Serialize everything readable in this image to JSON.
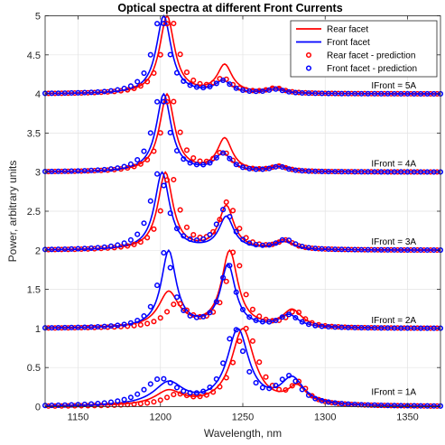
{
  "chart_data": {
    "type": "line",
    "title": "Optical spectra at different Front Currents",
    "xlabel": "Wavelength, nm",
    "ylabel": "Power, arbitrary units",
    "xlim": [
      1130,
      1370
    ],
    "ylim": [
      0,
      5
    ],
    "xticks": [
      "1150",
      "1200",
      "1250",
      "1300",
      "1350"
    ],
    "yticks": [
      "0",
      "0.5",
      "1",
      "1.5",
      "2",
      "2.5",
      "3",
      "3.5",
      "4",
      "4.5",
      "5"
    ],
    "grid": true,
    "legend_position": "top-right",
    "colors": {
      "rear": "#ff0000",
      "front": "#0000ff"
    },
    "legend": [
      {
        "label": "Rear facet",
        "style": "line",
        "color": "#ff0000"
      },
      {
        "label": "Front facet",
        "style": "line",
        "color": "#0000ff"
      },
      {
        "label": "Rear facet - prediction",
        "style": "circle",
        "color": "#ff0000"
      },
      {
        "label": "Front facet - prediction",
        "style": "circle",
        "color": "#0000ff"
      }
    ],
    "annotations": [
      {
        "text": "IFront = 5A",
        "x": 1328,
        "y": 4.07
      },
      {
        "text": "IFront = 4A",
        "x": 1328,
        "y": 3.07
      },
      {
        "text": "IFront = 3A",
        "x": 1328,
        "y": 2.07
      },
      {
        "text": "IFront = 2A",
        "x": 1328,
        "y": 1.07
      },
      {
        "text": "IFront = 1A",
        "x": 1328,
        "y": 0.15
      }
    ],
    "groups": [
      {
        "label": "IFront = 1A",
        "offset": 0,
        "rear": {
          "p1": [
            1205,
            0.18,
            20
          ],
          "p2": [
            1250,
            0.97,
            17
          ],
          "p3": [
            1283,
            0.22,
            14
          ]
        },
        "front": {
          "p1": [
            1205,
            0.28,
            22
          ],
          "p2": [
            1247,
            0.93,
            16
          ],
          "p3": [
            1280,
            0.32,
            17
          ]
        },
        "rear_pred": {
          "p1": [
            1210,
            0.12,
            18
          ],
          "p2": [
            1252,
            0.99,
            18
          ],
          "p3": [
            1284,
            0.25,
            12
          ]
        },
        "front_pred": {
          "p1": [
            1200,
            0.32,
            24
          ],
          "p2": [
            1245,
            0.92,
            15
          ],
          "p3": [
            1278,
            0.33,
            17
          ]
        }
      },
      {
        "label": "IFront = 2A",
        "offset": 1,
        "rear": {
          "p1": [
            1205,
            0.45,
            15
          ],
          "p2": [
            1242,
            0.97,
            12
          ],
          "p3": [
            1280,
            0.22,
            14
          ]
        },
        "front": {
          "p1": [
            1205,
            0.98,
            11
          ],
          "p2": [
            1241,
            0.8,
            11
          ],
          "p3": [
            1278,
            0.16,
            14
          ]
        },
        "rear_pred": {
          "p1": [
            1210,
            0.3,
            16
          ],
          "p2": [
            1245,
            0.98,
            12
          ],
          "p3": [
            1282,
            0.2,
            12
          ]
        },
        "front_pred": {
          "p1": [
            1203,
            1.0,
            11
          ],
          "p2": [
            1241,
            0.82,
            11
          ],
          "p3": [
            1278,
            0.16,
            14
          ]
        }
      },
      {
        "label": "IFront = 3A",
        "offset": 2,
        "rear": {
          "p1": [
            1203,
            1.0,
            11
          ],
          "p2": [
            1240,
            0.56,
            11
          ],
          "p3": [
            1275,
            0.12,
            13
          ]
        },
        "front": {
          "p1": [
            1201,
            1.0,
            11
          ],
          "p2": [
            1240,
            0.42,
            11
          ],
          "p3": [
            1275,
            0.1,
            13
          ]
        },
        "rear_pred": {
          "p1": [
            1206,
            0.9,
            12
          ],
          "p2": [
            1241,
            0.55,
            12
          ],
          "p3": [
            1276,
            0.1,
            12
          ]
        },
        "front_pred": {
          "p1": [
            1199,
            0.98,
            13
          ],
          "p2": [
            1239,
            0.5,
            12
          ],
          "p3": [
            1276,
            0.12,
            13
          ]
        }
      },
      {
        "label": "IFront = 4A",
        "offset": 3,
        "rear": {
          "p1": [
            1204,
            1.0,
            11
          ],
          "p2": [
            1239,
            0.42,
            11
          ],
          "p3": [
            1272,
            0.08,
            12
          ]
        },
        "front": {
          "p1": [
            1202,
            0.98,
            11
          ],
          "p2": [
            1238,
            0.22,
            12
          ],
          "p3": [
            1272,
            0.06,
            12
          ]
        },
        "rear_pred": {
          "p1": [
            1206,
            0.95,
            12
          ],
          "p2": [
            1238,
            0.22,
            13
          ],
          "p3": [
            1272,
            0.06,
            12
          ]
        },
        "front_pred": {
          "p1": [
            1200,
            1.0,
            12
          ],
          "p2": [
            1238,
            0.22,
            12
          ],
          "p3": [
            1272,
            0.06,
            12
          ]
        }
      },
      {
        "label": "IFront = 5A",
        "offset": 4,
        "rear": {
          "p1": [
            1204,
            1.0,
            11
          ],
          "p2": [
            1239,
            0.36,
            11
          ],
          "p3": [
            1270,
            0.07,
            12
          ]
        },
        "front": {
          "p1": [
            1202,
            0.98,
            11
          ],
          "p2": [
            1238,
            0.15,
            12
          ],
          "p3": [
            1270,
            0.05,
            12
          ]
        },
        "rear_pred": {
          "p1": [
            1206,
            0.93,
            12
          ],
          "p2": [
            1238,
            0.16,
            13
          ],
          "p3": [
            1270,
            0.06,
            12
          ]
        },
        "front_pred": {
          "p1": [
            1200,
            1.0,
            12
          ],
          "p2": [
            1238,
            0.15,
            12
          ],
          "p3": [
            1270,
            0.05,
            12
          ]
        }
      }
    ]
  }
}
